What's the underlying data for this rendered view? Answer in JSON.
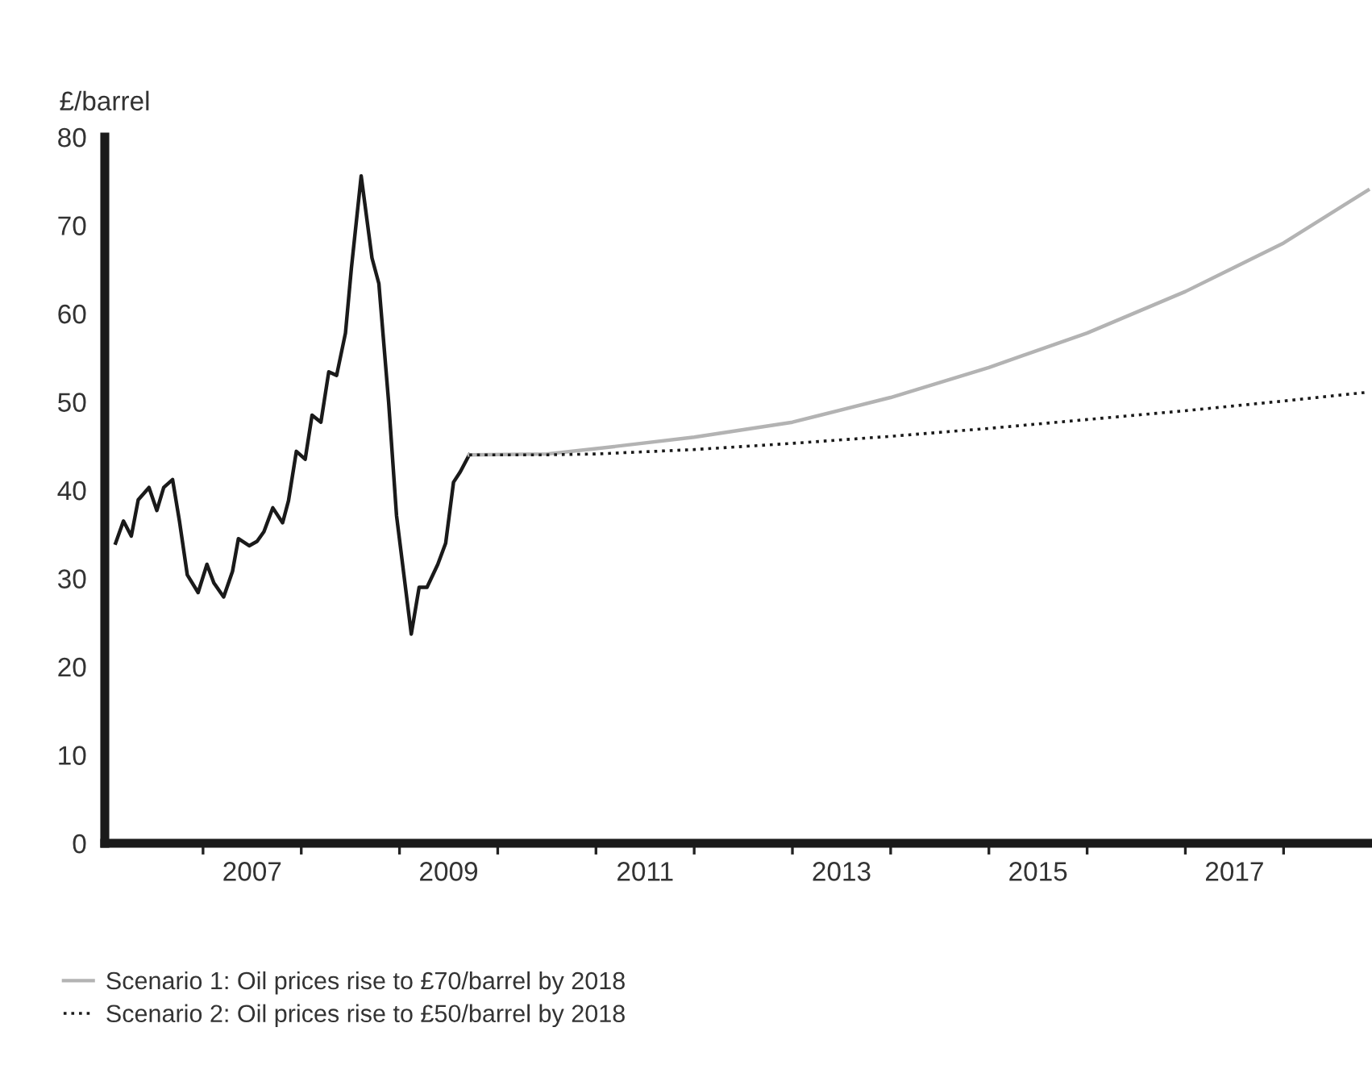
{
  "chart_data": {
    "type": "line",
    "ylabel": "£/barrel",
    "xlim": [
      2006.0,
      2018.9
    ],
    "ylim": [
      0,
      80
    ],
    "yticks": [
      0,
      10,
      20,
      30,
      40,
      50,
      60,
      70,
      80
    ],
    "xticks": [
      {
        "value": 2007,
        "label": null
      },
      {
        "value": 2007.5,
        "label": "2007"
      },
      {
        "value": 2008,
        "label": null
      },
      {
        "value": 2009,
        "label": null
      },
      {
        "value": 2009.5,
        "label": "2009"
      },
      {
        "value": 2010,
        "label": null
      },
      {
        "value": 2011,
        "label": null
      },
      {
        "value": 2011.5,
        "label": "2011"
      },
      {
        "value": 2012,
        "label": null
      },
      {
        "value": 2013,
        "label": null
      },
      {
        "value": 2013.5,
        "label": "2013"
      },
      {
        "value": 2014,
        "label": null
      },
      {
        "value": 2015,
        "label": null
      },
      {
        "value": 2015.5,
        "label": "2015"
      },
      {
        "value": 2016,
        "label": null
      },
      {
        "value": 2017,
        "label": null
      },
      {
        "value": 2017.5,
        "label": "2017"
      },
      {
        "value": 2018,
        "label": null
      }
    ],
    "grid": false,
    "legend": "bottom left",
    "marker": "none",
    "series": [
      {
        "color": "#1a1a1a",
        "line_style": "solid",
        "x": [
          2006.11,
          2006.19,
          2006.27,
          2006.34,
          2006.45,
          2006.53,
          2006.6,
          2006.69,
          2006.76,
          2006.84,
          2006.95,
          2007.04,
          2007.11,
          2007.21,
          2007.3,
          2007.36,
          2007.47,
          2007.55,
          2007.62,
          2007.71,
          2007.81,
          2007.87,
          2007.95,
          2008.04,
          2008.11,
          2008.2,
          2008.28,
          2008.36,
          2008.45,
          2008.51,
          2008.61,
          2008.72,
          2008.79,
          2008.89,
          2008.97,
          2009.12,
          2009.2,
          2009.28,
          2009.39,
          2009.47,
          2009.55,
          2009.62,
          2009.71
        ],
        "values": [
          34.0,
          36.5,
          34.8,
          38.9,
          40.3,
          37.7,
          40.3,
          41.2,
          36.5,
          30.4,
          28.4,
          31.6,
          29.5,
          27.9,
          30.8,
          34.5,
          33.7,
          34.2,
          35.3,
          38.0,
          36.3,
          38.8,
          44.4,
          43.5,
          48.5,
          47.7,
          53.4,
          53.0,
          57.8,
          65.1,
          75.6,
          66.3,
          63.4,
          49.9,
          37.1,
          23.7,
          29.0,
          29.0,
          31.6,
          34.0,
          40.9,
          42.1,
          44.0
        ]
      },
      {
        "name": "Scenario 1: Oil prices rise to £70/barrel by 2018",
        "color": "#b3b3b3",
        "line_style": "solid",
        "x": [
          2009.71,
          2010.5,
          2011,
          2012,
          2013,
          2014,
          2015,
          2016,
          2017,
          2018,
          2018.86
        ],
        "values": [
          44.0,
          44.1,
          44.7,
          46.0,
          47.7,
          50.5,
          53.9,
          57.8,
          62.5,
          68.0,
          74.0
        ]
      },
      {
        "name": "Scenario 2: Oil prices rise to £50/barrel by 2018",
        "color": "#1a1a1a",
        "line_style": "dotted",
        "x": [
          2009.71,
          2010.5,
          2011,
          2012,
          2013,
          2014,
          2015,
          2016,
          2017,
          2018,
          2018.86
        ],
        "values": [
          44.0,
          44.0,
          44.1,
          44.6,
          45.3,
          46.1,
          47.0,
          48.0,
          49.0,
          50.1,
          51.1
        ]
      }
    ]
  }
}
